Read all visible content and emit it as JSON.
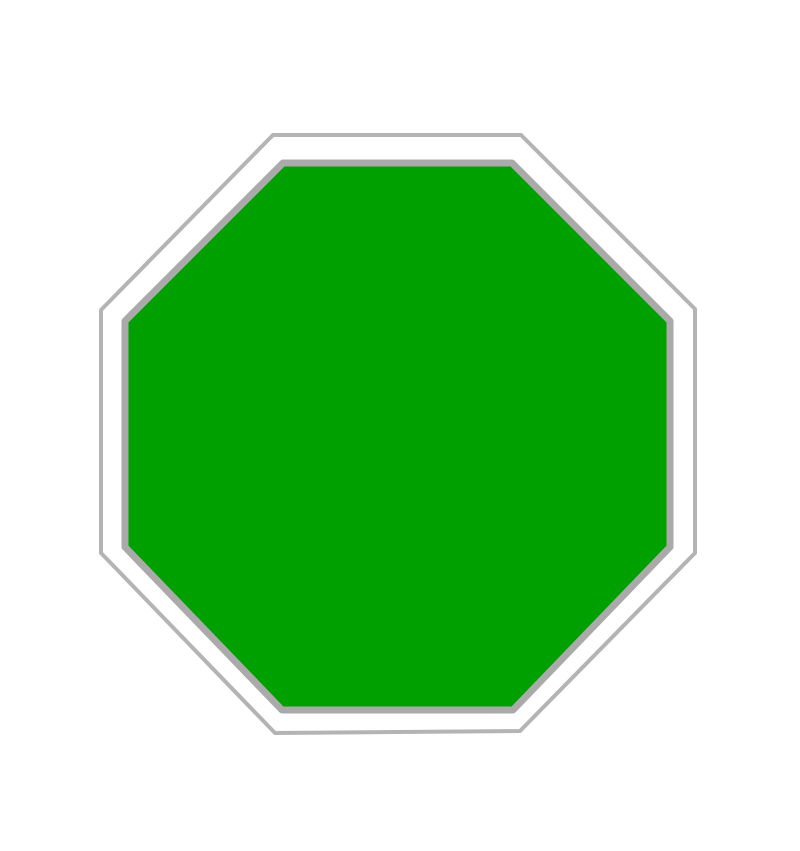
{
  "sign": {
    "shape": "octagon",
    "fill_color": "#00a000",
    "inner_border_color": "#aaaaaa",
    "outer_border_color": "#b4b4b4",
    "background_color": "#ffffff"
  }
}
